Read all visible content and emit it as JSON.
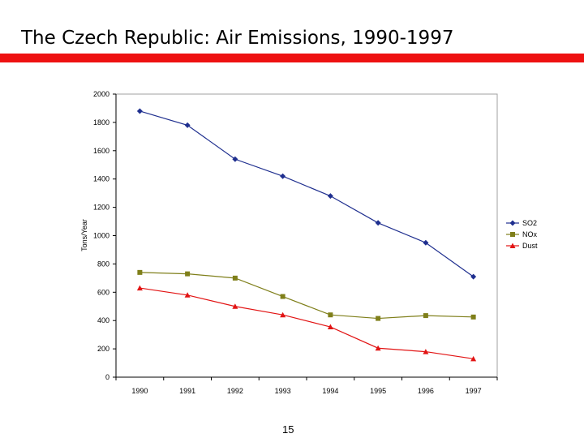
{
  "slide": {
    "title": "The Czech Republic: Air Emissions, 1990-1997",
    "page_number": "15",
    "accent_color": "#ee1111"
  },
  "chart_data": {
    "type": "line",
    "title": "",
    "xlabel": "",
    "ylabel": "Tons/Year",
    "categories": [
      "1990",
      "1991",
      "1992",
      "1993",
      "1994",
      "1995",
      "1996",
      "1997"
    ],
    "ylim": [
      0,
      2000
    ],
    "yticks": [
      0,
      200,
      400,
      600,
      800,
      1000,
      1200,
      1400,
      1600,
      1800,
      2000
    ],
    "grid": false,
    "legend_position": "right",
    "series": [
      {
        "name": "SO2",
        "color": "#1f2f8f",
        "marker": "diamond",
        "values": [
          1880,
          1780,
          1540,
          1420,
          1280,
          1090,
          950,
          710
        ]
      },
      {
        "name": "NOx",
        "color": "#7f7f1a",
        "marker": "square",
        "values": [
          740,
          730,
          700,
          570,
          440,
          415,
          435,
          425
        ]
      },
      {
        "name": "Dust",
        "color": "#e21414",
        "marker": "triangle",
        "values": [
          630,
          580,
          500,
          440,
          355,
          205,
          180,
          130
        ]
      }
    ]
  }
}
